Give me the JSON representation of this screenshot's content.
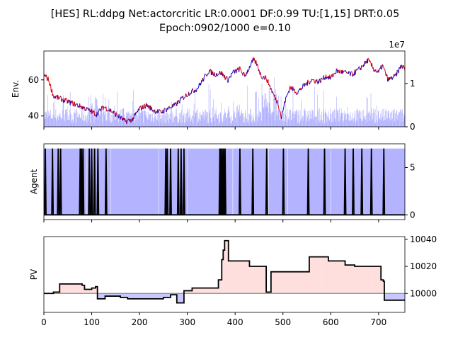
{
  "title_line1": "[HES] RL:ddpg Net:actorcritic LR:0.0001 DF:0.99 TU:[1,15] DRT:0.05",
  "title_line2": "Epoch:0902/1000 e=0.10",
  "colors": {
    "price_up": "#0000cc",
    "price_down": "#ee0000",
    "volume": "#aaaaff",
    "agent_fill": "#b3b3ff",
    "agent_line": "#000000",
    "pv_gain_fill": "#ffdede",
    "pv_loss_fill": "#c8c8ff",
    "baseline": "#888888"
  },
  "chart_data": [
    {
      "type": "line",
      "name": "env",
      "ylabel": "Env.",
      "xlim": [
        0,
        755
      ],
      "ylim": [
        34,
        76
      ],
      "yticks": [
        "40",
        "60"
      ],
      "secondary_axis": {
        "offset_label": "1e7",
        "ylim": [
          0,
          1.75
        ],
        "yticks": [
          "0",
          "1"
        ]
      },
      "price_keypoints": [
        [
          0,
          63
        ],
        [
          10,
          60
        ],
        [
          20,
          51
        ],
        [
          40,
          49
        ],
        [
          60,
          47
        ],
        [
          80,
          45
        ],
        [
          95,
          43
        ],
        [
          110,
          41
        ],
        [
          125,
          45
        ],
        [
          140,
          43
        ],
        [
          155,
          40
        ],
        [
          170,
          37
        ],
        [
          185,
          38
        ],
        [
          200,
          44
        ],
        [
          215,
          46
        ],
        [
          230,
          43
        ],
        [
          245,
          42
        ],
        [
          258,
          44
        ],
        [
          275,
          46
        ],
        [
          290,
          50
        ],
        [
          305,
          53
        ],
        [
          320,
          55
        ],
        [
          345,
          65
        ],
        [
          358,
          63
        ],
        [
          370,
          64
        ],
        [
          385,
          60
        ],
        [
          395,
          64
        ],
        [
          410,
          66
        ],
        [
          420,
          62
        ],
        [
          438,
          71
        ],
        [
          445,
          69
        ],
        [
          455,
          62
        ],
        [
          465,
          61
        ],
        [
          472,
          57
        ],
        [
          480,
          52
        ],
        [
          490,
          47
        ],
        [
          497,
          39
        ],
        [
          504,
          48
        ],
        [
          515,
          56
        ],
        [
          530,
          53
        ],
        [
          545,
          57
        ],
        [
          560,
          60
        ],
        [
          575,
          59
        ],
        [
          590,
          62
        ],
        [
          600,
          61
        ],
        [
          612,
          65
        ],
        [
          630,
          64
        ],
        [
          645,
          63
        ],
        [
          660,
          66
        ],
        [
          678,
          71
        ],
        [
          690,
          66
        ],
        [
          700,
          64
        ],
        [
          708,
          68
        ],
        [
          720,
          60
        ],
        [
          735,
          62
        ],
        [
          748,
          68
        ],
        [
          755,
          66
        ]
      ],
      "volume_note": "volume bars shown on secondary axis (x1e7)"
    },
    {
      "type": "area",
      "name": "agent",
      "ylabel": "Agent",
      "xlim": [
        0,
        755
      ],
      "ylim": [
        -0.5,
        7.5
      ],
      "yticks": [
        "0",
        "5"
      ],
      "spikes_x": [
        3,
        18,
        30,
        35,
        76,
        79,
        82,
        95,
        100,
        106,
        113,
        130,
        255,
        258,
        265,
        281,
        287,
        293,
        368,
        370,
        373,
        376,
        379,
        410,
        437,
        466,
        501,
        553,
        587,
        630,
        647,
        665,
        685,
        711
      ],
      "spike_height": 7
    },
    {
      "type": "line",
      "name": "pv",
      "ylabel": "PV",
      "xlim": [
        0,
        755
      ],
      "ylim": [
        9986,
        10042
      ],
      "yticks": [
        "10000",
        "10020",
        "10040"
      ],
      "xticks": [
        "0",
        "100",
        "200",
        "300",
        "400",
        "500",
        "600",
        "700"
      ],
      "baseline": 10000,
      "steps": [
        [
          0,
          10000
        ],
        [
          20,
          10001
        ],
        [
          33,
          10007
        ],
        [
          80,
          10006
        ],
        [
          85,
          10003
        ],
        [
          100,
          10004
        ],
        [
          108,
          10005
        ],
        [
          112,
          9996
        ],
        [
          128,
          9998
        ],
        [
          160,
          9997
        ],
        [
          175,
          9996
        ],
        [
          210,
          9996
        ],
        [
          250,
          9997
        ],
        [
          265,
          9999
        ],
        [
          278,
          9993
        ],
        [
          293,
          10002
        ],
        [
          310,
          10004
        ],
        [
          365,
          10010
        ],
        [
          372,
          10025
        ],
        [
          375,
          10032
        ],
        [
          378,
          10039
        ],
        [
          386,
          10024
        ],
        [
          410,
          10024
        ],
        [
          430,
          10020
        ],
        [
          465,
          10001
        ],
        [
          475,
          10016
        ],
        [
          550,
          10016
        ],
        [
          555,
          10027
        ],
        [
          580,
          10027
        ],
        [
          595,
          10024
        ],
        [
          630,
          10021
        ],
        [
          650,
          10020
        ],
        [
          685,
          10020
        ],
        [
          705,
          10010
        ],
        [
          710,
          10009
        ],
        [
          712,
          9995
        ],
        [
          755,
          9995
        ]
      ]
    }
  ]
}
